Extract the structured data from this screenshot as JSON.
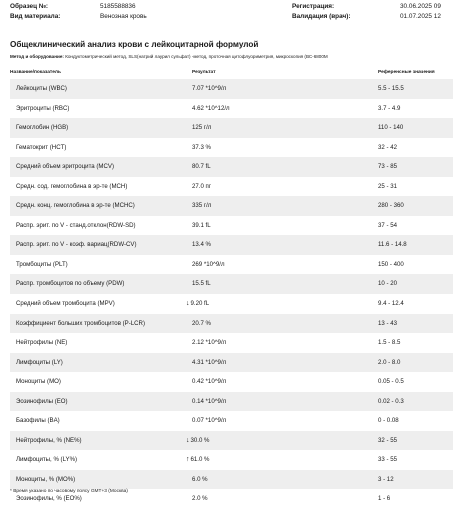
{
  "header": {
    "sample_label": "Образец №:",
    "sample_value": "5185588836",
    "material_label": "Вид материала:",
    "material_value": "Венозная кровь",
    "registration_label": "Регистрация:",
    "registration_value": "30.06.2025 09",
    "validation_label": "Валидация (врач):",
    "validation_value": "01.07.2025 12"
  },
  "title": "Общеклинический анализ крови с лейкоцитарной формулой",
  "method": {
    "label": "Метод и оборудование:",
    "text": "Кондуктометрический метод, SLS(натрий лаурил сульфат) -метод, проточная цитофлуориметрия, микроскопия (ВС-6800М"
  },
  "columns": {
    "name": "Название/показатель",
    "result": "Результат",
    "reference": "Референсные значения"
  },
  "rows": [
    {
      "name": "Лейкоциты (WBC)",
      "flag": "",
      "result": "7.07 *10^9/л",
      "ref": "5.5 - 15.5"
    },
    {
      "name": "Эритроциты (RBC)",
      "flag": "",
      "result": "4.62 *10^12/л",
      "ref": "3.7 - 4.9"
    },
    {
      "name": "Гемоглобин (HGB)",
      "flag": "",
      "result": "125 г/л",
      "ref": "110 - 140"
    },
    {
      "name": "Гематокрит (HCT)",
      "flag": "",
      "result": "37.3 %",
      "ref": "32 - 42"
    },
    {
      "name": "Средний объем эритроцита (MCV)",
      "flag": "",
      "result": "80.7 fL",
      "ref": "73 - 85"
    },
    {
      "name": "Средн. сод. гемоглобина в эр-те (MCH)",
      "flag": "",
      "result": "27.0 пг",
      "ref": "25 - 31"
    },
    {
      "name": "Средн. конц. гемоглобина в эр-те (MCHC)",
      "flag": "",
      "result": "335 г/л",
      "ref": "280 - 360"
    },
    {
      "name": "Распр. эрит. по V - станд.отклон(RDW-SD)",
      "flag": "",
      "result": "39.1 fL",
      "ref": "37 - 54"
    },
    {
      "name": "Распр. эрит. по V - коэф. вариац(RDW-CV)",
      "flag": "",
      "result": "13.4 %",
      "ref": "11.6 - 14.8"
    },
    {
      "name": "Тромбоциты (PLT)",
      "flag": "",
      "result": "269 *10^9/л",
      "ref": "150 - 400"
    },
    {
      "name": "Распр. тромбоцитов по объему (PDW)",
      "flag": "",
      "result": "15.5 fL",
      "ref": "10 - 20"
    },
    {
      "name": "Средний объем тромбоцита (MPV)",
      "flag": "↓",
      "result": "9.20 fL",
      "ref": "9.4 - 12.4"
    },
    {
      "name": "Коэффициент больших тромбоцитов (P-LCR)",
      "flag": "",
      "result": "20.7 %",
      "ref": "13 - 43"
    },
    {
      "name": "Нейтрофилы (NE)",
      "flag": "",
      "result": "2.12 *10^9/л",
      "ref": "1.5 - 8.5"
    },
    {
      "name": "Лимфоциты (LY)",
      "flag": "",
      "result": "4.31 *10^9/л",
      "ref": "2.0 - 8.0"
    },
    {
      "name": "Моноциты (MO)",
      "flag": "",
      "result": "0.42 *10^9/л",
      "ref": "0.05 - 0.5"
    },
    {
      "name": "Эозинофилы (EO)",
      "flag": "",
      "result": "0.14 *10^9/л",
      "ref": "0.02 - 0.3"
    },
    {
      "name": "Базофилы (BA)",
      "flag": "",
      "result": "0.07 *10^9/л",
      "ref": "0 - 0.08"
    },
    {
      "name": "Нейтрофилы, % (NE%)",
      "flag": "↓",
      "result": "30.0 %",
      "ref": "32 - 55"
    },
    {
      "name": "Лимфоциты, % (LY%)",
      "flag": "↑",
      "result": "61.0 %",
      "ref": "33 - 55"
    },
    {
      "name": "Моноциты, % (MO%)",
      "flag": "",
      "result": "6.0 %",
      "ref": "3 - 12"
    },
    {
      "name": "Эозинофилы, % (EO%)",
      "flag": "",
      "result": "2.0 %",
      "ref": "1 - 6"
    }
  ],
  "footnote": "* Время указано по часовому поясу GMT+3 (Москва)"
}
